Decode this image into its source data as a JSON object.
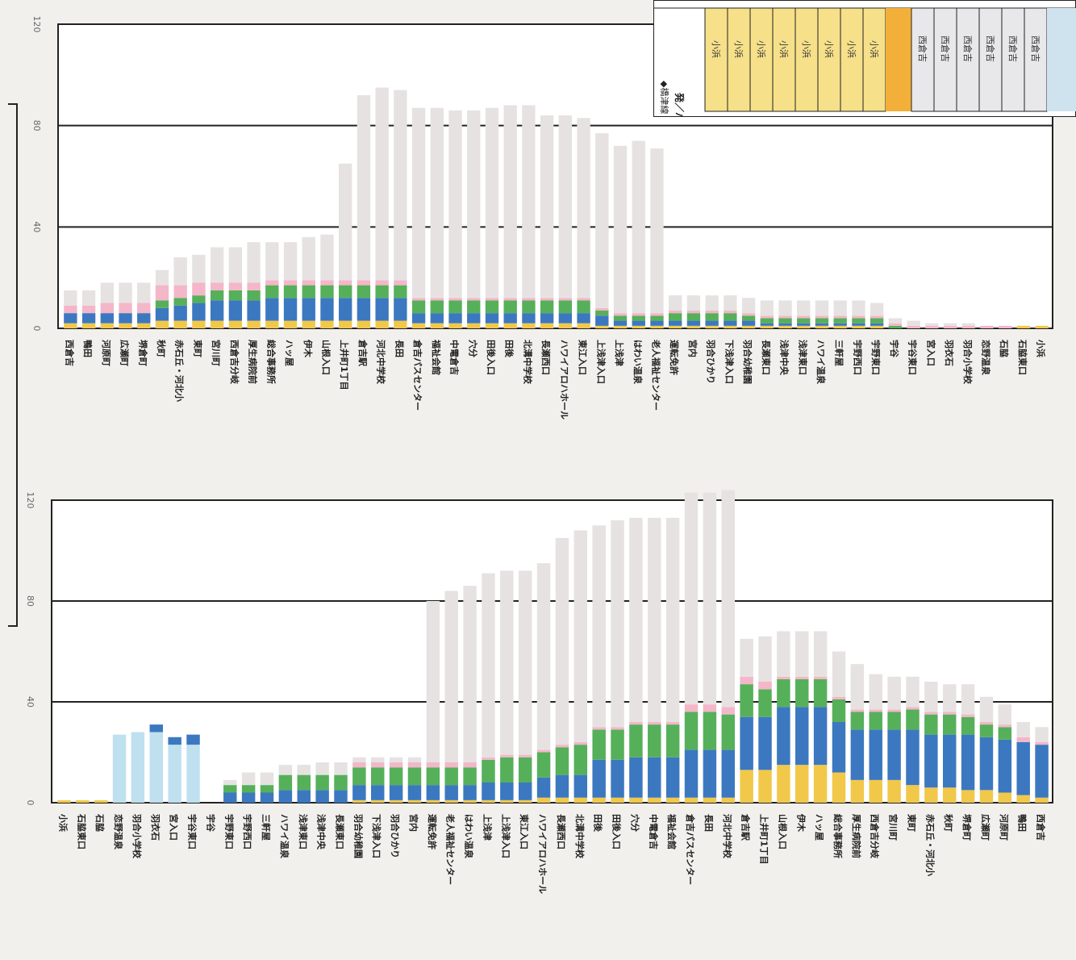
{
  "colors": {
    "seg1": "#f2c84b",
    "seg2": "#3c78c0",
    "seg3": "#56b05a",
    "seg4": "#f4b6c9",
    "seg5": "#e7e2e2",
    "cyan": "#bfe0ef",
    "grid": "#222222",
    "text": "#222222"
  },
  "table": {
    "header_label": "◆橋津線 小浜〜",
    "row_label": "発／バス停",
    "yellow_cells": [
      "小浜",
      "小浜",
      "小浜",
      "小浜",
      "小浜",
      "小浜",
      "小浜",
      "小浜"
    ],
    "gray_cells": [
      "西倉吉",
      "西倉吉",
      "西倉吉",
      "西倉吉",
      "西倉吉",
      "西倉吉"
    ]
  },
  "chart_data": [
    {
      "type": "bar",
      "stacked": true,
      "ylim": [
        0,
        120
      ],
      "yticks": [
        0,
        40,
        80,
        120
      ],
      "tick_labels": [
        "0",
        "40",
        "80",
        "120"
      ],
      "grid": true,
      "categories": [
        "西倉吉",
        "鴨田",
        "河原町",
        "広瀬町",
        "堺倉町",
        "秋町",
        "赤石丘・河北小",
        "東町",
        "宮川町",
        "西倉吉分岐",
        "厚生病院前",
        "総合事務所",
        "ハッ屋",
        "伊木",
        "山根入口",
        "上井町1丁目",
        "倉吉駅",
        "河北中学校",
        "長田",
        "倉吉パスセンター",
        "福祉会館",
        "中電倉吉",
        "穴分",
        "田後入口",
        "田後",
        "北溝中学校",
        "長瀬西口",
        "ハワイアロハホール",
        "東江入口",
        "上浅津入口",
        "上浅津",
        "はわい温泉",
        "老人福祉センター",
        "運転免許",
        "宮内",
        "羽合ひかり",
        "下浅津入口",
        "羽合幼稚園",
        "長瀬東口",
        "浅津中央",
        "浅津東口",
        "ハワイ温泉",
        "三軒屋",
        "宇野西口",
        "宇野東口",
        "宇谷",
        "宇谷東口",
        "宮入口",
        "羽衣石",
        "羽合小学校",
        "恋野温泉",
        "石脇",
        "石脇東口",
        "小浜"
      ],
      "series": [
        {
          "values": [
            2,
            2,
            2,
            2,
            2,
            3,
            3,
            3,
            3,
            3,
            3,
            3,
            3,
            3,
            3,
            3,
            3,
            3,
            3,
            2,
            2,
            2,
            2,
            2,
            2,
            2,
            2,
            2,
            2,
            1,
            1,
            1,
            1,
            1,
            1,
            1,
            1,
            1,
            1,
            1,
            1,
            1,
            1,
            1,
            1,
            0,
            0,
            0,
            0,
            0,
            0,
            0,
            1,
            1
          ]
        },
        {
          "values": [
            4,
            4,
            4,
            4,
            4,
            5,
            6,
            7,
            8,
            8,
            8,
            9,
            9,
            9,
            9,
            9,
            9,
            9,
            9,
            4,
            4,
            4,
            4,
            4,
            4,
            4,
            4,
            4,
            4,
            4,
            2,
            2,
            2,
            2,
            2,
            2,
            2,
            2,
            1,
            1,
            1,
            1,
            1,
            1,
            1,
            0,
            0,
            0,
            0,
            0,
            0,
            0,
            0,
            0
          ]
        },
        {
          "values": [
            0,
            0,
            0,
            0,
            0,
            3,
            3,
            3,
            4,
            4,
            4,
            5,
            5,
            5,
            5,
            5,
            5,
            5,
            5,
            5,
            5,
            5,
            5,
            5,
            5,
            5,
            5,
            5,
            5,
            2,
            2,
            2,
            2,
            3,
            3,
            3,
            3,
            2,
            2,
            2,
            2,
            2,
            2,
            2,
            2,
            1,
            0,
            0,
            0,
            0,
            0,
            0,
            0,
            0
          ]
        },
        {
          "values": [
            3,
            3,
            4,
            4,
            4,
            6,
            5,
            5,
            3,
            3,
            3,
            2,
            2,
            2,
            2,
            2,
            2,
            2,
            2,
            1,
            1,
            1,
            1,
            1,
            1,
            1,
            1,
            1,
            1,
            1,
            1,
            1,
            1,
            1,
            1,
            1,
            1,
            1,
            1,
            1,
            1,
            1,
            1,
            1,
            1,
            1,
            1,
            1,
            1,
            1,
            1,
            1,
            0,
            0
          ]
        },
        {
          "values": [
            6,
            6,
            8,
            8,
            8,
            6,
            11,
            11,
            14,
            14,
            16,
            15,
            15,
            17,
            18,
            46,
            73,
            76,
            75,
            75,
            75,
            74,
            74,
            75,
            76,
            76,
            72,
            72,
            71,
            69,
            66,
            68,
            65,
            6,
            6,
            6,
            6,
            6,
            6,
            6,
            6,
            6,
            6,
            6,
            5,
            2,
            2,
            1,
            1,
            1,
            0,
            0,
            0,
            0
          ]
        }
      ]
    },
    {
      "type": "bar",
      "stacked": true,
      "ylim": [
        0,
        120
      ],
      "yticks": [
        0,
        40,
        80,
        120
      ],
      "tick_labels": [
        "0",
        "40",
        "80",
        "120"
      ],
      "grid": true,
      "categories": [
        "小浜",
        "石脇東口",
        "石脇",
        "恋野温泉",
        "羽合小学校",
        "羽衣石",
        "宮入口",
        "宇谷東口",
        "宇谷",
        "宇野東口",
        "宇野西口",
        "三軒屋",
        "ハワイ温泉",
        "浅津東口",
        "浅津中央",
        "長瀬東口",
        "羽合幼稚園",
        "下浅津入口",
        "羽合ひかり",
        "宮内",
        "運転免許",
        "老人福祉センター",
        "はわい温泉",
        "上浅津",
        "上浅津入口",
        "東江入口",
        "ハワイアロハホール",
        "長瀬西口",
        "北溝中学校",
        "田後",
        "田後入口",
        "穴分",
        "中電倉吉",
        "福祉会館",
        "倉吉パスセンター",
        "長田",
        "河北中学校",
        "倉吉駅",
        "上井町1丁目",
        "山根入口",
        "伊木",
        "ハッ屋",
        "総合事務所",
        "厚生病院前",
        "西倉吉分岐",
        "宮川町",
        "東町",
        "赤石丘・河北小",
        "秋町",
        "堺倉町",
        "広瀬町",
        "河原町",
        "鴨田",
        "西倉吉"
      ],
      "series": [
        {
          "values": [
            1,
            1,
            1,
            0,
            0,
            0,
            0,
            0,
            0,
            0,
            0,
            0,
            0,
            0,
            0,
            0,
            1,
            1,
            1,
            1,
            1,
            1,
            1,
            1,
            1,
            1,
            2,
            2,
            2,
            2,
            2,
            2,
            2,
            2,
            2,
            2,
            2,
            13,
            13,
            15,
            15,
            15,
            12,
            9,
            9,
            9,
            7,
            6,
            6,
            5,
            5,
            4,
            3,
            2
          ]
        },
        {
          "values": [
            0,
            0,
            0,
            0,
            0,
            0,
            0,
            0,
            0,
            4,
            4,
            4,
            5,
            5,
            5,
            5,
            6,
            6,
            6,
            6,
            6,
            6,
            6,
            7,
            7,
            7,
            8,
            9,
            9,
            15,
            15,
            16,
            16,
            16,
            19,
            19,
            19,
            21,
            21,
            23,
            23,
            23,
            20,
            20,
            20,
            20,
            22,
            21,
            21,
            22,
            21,
            21,
            21,
            21
          ]
        },
        {
          "values": [
            0,
            0,
            0,
            0,
            0,
            0,
            0,
            0,
            0,
            3,
            3,
            3,
            6,
            6,
            6,
            6,
            7,
            7,
            7,
            7,
            7,
            7,
            7,
            9,
            10,
            10,
            10,
            11,
            12,
            12,
            12,
            13,
            13,
            13,
            15,
            15,
            14,
            13,
            11,
            11,
            11,
            11,
            9,
            7,
            7,
            7,
            8,
            8,
            8,
            7,
            5,
            5,
            0,
            0
          ]
        },
        {
          "values": [
            0,
            0,
            0,
            0,
            0,
            0,
            0,
            0,
            0,
            0,
            0,
            0,
            0,
            0,
            0,
            0,
            2,
            2,
            2,
            2,
            2,
            2,
            2,
            1,
            1,
            1,
            1,
            1,
            1,
            1,
            1,
            1,
            1,
            1,
            3,
            3,
            3,
            3,
            3,
            1,
            1,
            1,
            1,
            1,
            1,
            1,
            1,
            1,
            1,
            1,
            1,
            1,
            2,
            1
          ]
        },
        {
          "values": [
            0,
            0,
            0,
            0,
            0,
            0,
            0,
            0,
            0,
            2,
            5,
            5,
            4,
            4,
            5,
            5,
            2,
            2,
            2,
            2,
            64,
            68,
            70,
            73,
            73,
            73,
            74,
            82,
            84,
            80,
            82,
            81,
            81,
            81,
            84,
            84,
            86,
            15,
            18,
            18,
            18,
            18,
            18,
            18,
            14,
            13,
            12,
            12,
            11,
            12,
            10,
            8,
            6,
            6
          ]
        },
        {
          "name": "cyan",
          "values": [
            0,
            0,
            0,
            27,
            28,
            28,
            23,
            23,
            0,
            0,
            0,
            0,
            0,
            0,
            0,
            0,
            0,
            0,
            0,
            0,
            0,
            0,
            0,
            0,
            0,
            0,
            0,
            0,
            0,
            0,
            0,
            0,
            0,
            0,
            0,
            0,
            0,
            0,
            0,
            0,
            0,
            0,
            0,
            0,
            0,
            0,
            0,
            0,
            0,
            0,
            0,
            0,
            0,
            0
          ]
        },
        {
          "name": "cyan-cap",
          "values": [
            0,
            0,
            0,
            0,
            0,
            3,
            3,
            4,
            0,
            0,
            0,
            0,
            0,
            0,
            0,
            0,
            0,
            0,
            0,
            0,
            0,
            0,
            0,
            0,
            0,
            0,
            0,
            0,
            0,
            0,
            0,
            0,
            0,
            0,
            0,
            0,
            0,
            0,
            0,
            0,
            0,
            0,
            0,
            0,
            0,
            0,
            0,
            0,
            0,
            0,
            0,
            0,
            0,
            0
          ]
        }
      ]
    }
  ]
}
